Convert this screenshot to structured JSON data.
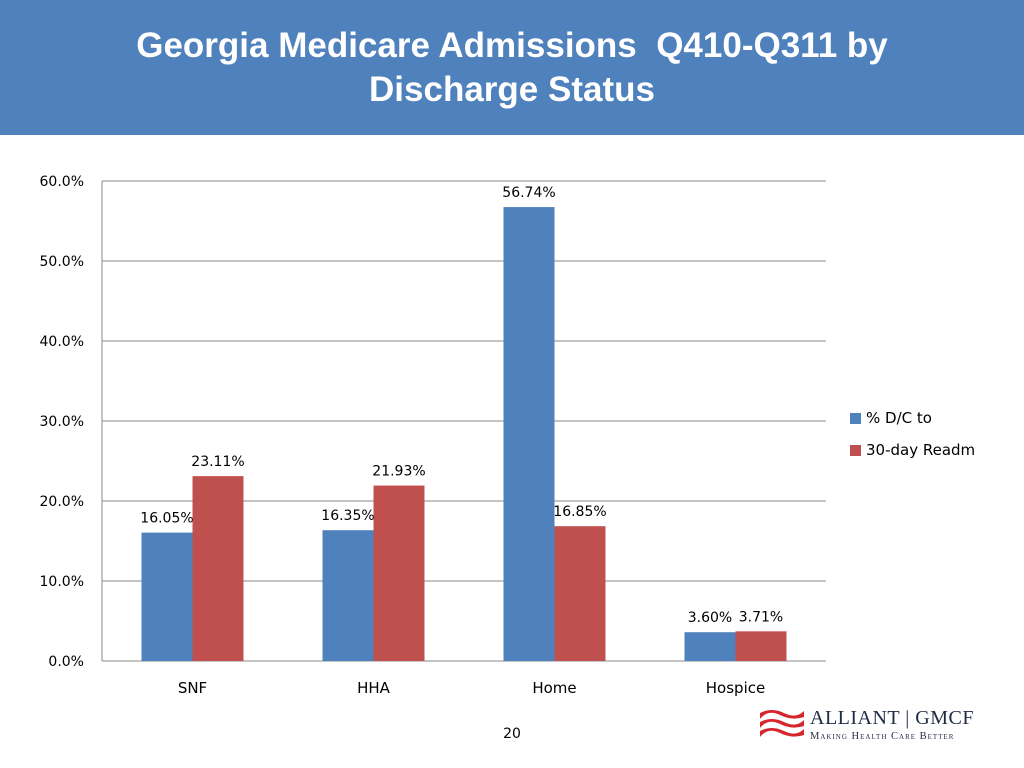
{
  "slide": {
    "title_lines": [
      "Georgia Medicare Admissions  Q410-Q311 by",
      "Discharge Status"
    ],
    "page_number": "20",
    "title_bar_color": "#4f81bd"
  },
  "logo": {
    "name": "ALLIANT | GMCF",
    "tagline": "Making Health Care Better",
    "icon": "alliant-flag-icon",
    "accent_color": "#d7262e"
  },
  "chart_data": {
    "type": "bar",
    "categories": [
      "SNF",
      "HHA",
      "Home",
      "Hospice"
    ],
    "series": [
      {
        "name": "% D/C to",
        "values": [
          16.05,
          16.35,
          56.74,
          3.6
        ],
        "labels": [
          "16.05%",
          "16.35%",
          "56.74%",
          "3.60%"
        ],
        "color": "#4f81bd"
      },
      {
        "name": "30-day Readm",
        "values": [
          23.11,
          21.93,
          16.85,
          3.71
        ],
        "labels": [
          "23.11%",
          "21.93%",
          "16.85%",
          "3.71%"
        ],
        "color": "#c0504d"
      }
    ],
    "ylim": [
      0,
      60
    ],
    "yticks": [
      0,
      10,
      20,
      30,
      40,
      50,
      60
    ],
    "ytick_labels": [
      "0.0%",
      "10.0%",
      "20.0%",
      "30.0%",
      "40.0%",
      "50.0%",
      "60.0%"
    ],
    "grid": true,
    "legend_position": "right",
    "title": "",
    "xlabel": "",
    "ylabel": ""
  }
}
